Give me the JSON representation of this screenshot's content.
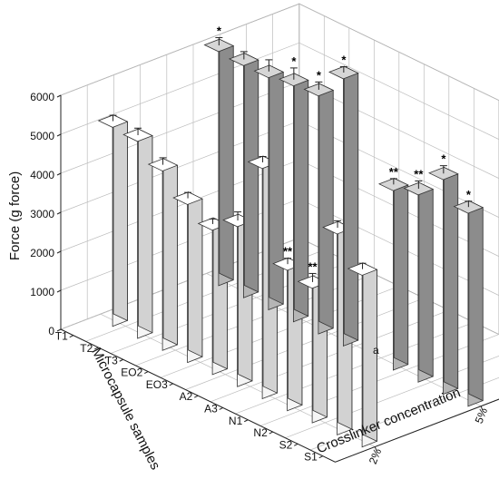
{
  "chart_data": {
    "type": "bar",
    "title": "",
    "zlabel": "Force (g force)",
    "xlabel": "Crosslinker concentration",
    "ylabel": "Microcapsule samples",
    "ylabel_suffix": "***",
    "zlim": [
      0,
      6000
    ],
    "z_ticks": [
      "0",
      "1000",
      "2000",
      "3000",
      "4000",
      "5000",
      "6000"
    ],
    "x_categories": [
      "2%",
      "5%"
    ],
    "y_categories": [
      "S1",
      "S2",
      "N2",
      "N1",
      "A3",
      "A2",
      "EO3",
      "EO2",
      "T3",
      "T2",
      "T1"
    ],
    "grid": true,
    "series": [
      {
        "crosslinker": "2%",
        "bars": [
          {
            "sample": "T1",
            "value": 5100,
            "error": 150,
            "annotation": ""
          },
          {
            "sample": "T2",
            "value": 5050,
            "error": 180,
            "annotation": ""
          },
          {
            "sample": "T3",
            "value": 4600,
            "error": 180,
            "annotation": ""
          },
          {
            "sample": "EO2",
            "value": 4050,
            "error": 150,
            "annotation": ""
          },
          {
            "sample": "EO3",
            "value": 3700,
            "error": 130,
            "annotation": ""
          },
          {
            "sample": "A2",
            "value": 4100,
            "error": 220,
            "annotation": ""
          },
          {
            "sample": "A3",
            "value": 5900,
            "error": 150,
            "annotation": ""
          },
          {
            "sample": "N1",
            "value": 3600,
            "error": 150,
            "annotation": "**"
          },
          {
            "sample": "N2",
            "value": 3450,
            "error": 220,
            "annotation": "**"
          },
          {
            "sample": "S2",
            "value": 5150,
            "error": 180,
            "annotation": ""
          },
          {
            "sample": "S1",
            "value": 4400,
            "error": 150,
            "annotation": ""
          }
        ]
      },
      {
        "crosslinker": "5%",
        "bars": [
          {
            "sample": "T1",
            "value": 6000,
            "error": 200,
            "annotation": "*"
          },
          {
            "sample": "T2",
            "value": 5950,
            "error": 200,
            "annotation": ""
          },
          {
            "sample": "T3",
            "value": 5950,
            "error": 300,
            "annotation": ""
          },
          {
            "sample": "EO2",
            "value": 6050,
            "error": 300,
            "annotation": "*"
          },
          {
            "sample": "EO3",
            "value": 6100,
            "error": 200,
            "annotation": "*"
          },
          {
            "sample": "A2",
            "value": 6850,
            "error": 150,
            "annotation": "*"
          },
          {
            "sample": "A3",
            "value": 0,
            "error": 0,
            "annotation": "a"
          },
          {
            "sample": "N1",
            "value": 4600,
            "error": 150,
            "annotation": "**"
          },
          {
            "sample": "N2",
            "value": 4800,
            "error": 200,
            "annotation": "**"
          },
          {
            "sample": "S2",
            "value": 5500,
            "error": 200,
            "annotation": "*"
          },
          {
            "sample": "S1",
            "value": 4950,
            "error": 150,
            "annotation": "*"
          }
        ]
      }
    ],
    "colors": {
      "bar_2pct_front": "#f5f5f5",
      "bar_5pct_front": "#b5b5b5"
    }
  }
}
